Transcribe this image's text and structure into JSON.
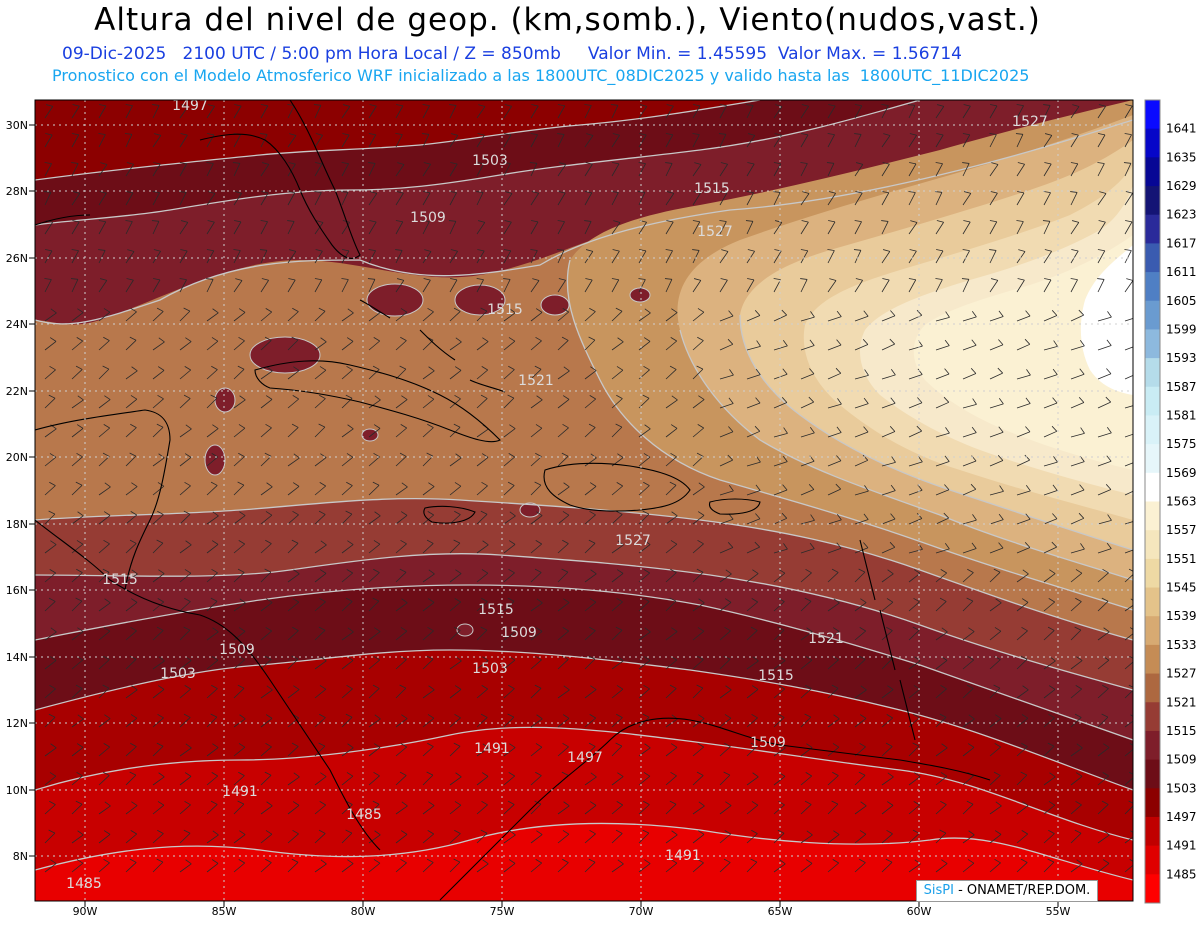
{
  "title": "Altura del nivel de geop. (km,somb.), Viento(nudos,vast.)",
  "subtitle_1": "09-Dic-2025   2100 UTC / 5:00 pm Hora Local / Z = 850mb     Valor Min. = 1.45595  Valor Max. = 1.56714",
  "subtitle_2": "Pronostico con el Modelo Atmosferico WRF inicializado a las 1800UTC_08DIC2025 y valido hasta las  1800UTC_11DIC2025",
  "credit": {
    "brand": "SisPI",
    "text": "- ONAMET/REP.DOM."
  },
  "map": {
    "lat_labels": [
      "30N",
      "28N",
      "26N",
      "24N",
      "22N",
      "20N",
      "18N",
      "16N",
      "14N",
      "12N",
      "10N",
      "8N"
    ],
    "lon_labels": [
      "90W",
      "85W",
      "80W",
      "75W",
      "70W",
      "65W",
      "60W",
      "55W"
    ],
    "contour_labels": [
      "1497",
      "1503",
      "1509",
      "1515",
      "1515",
      "1527",
      "1527",
      "1521",
      "1527",
      "1515",
      "1515",
      "1509",
      "1509",
      "1503",
      "1503",
      "1515",
      "1521",
      "1509",
      "1491",
      "1497",
      "1491",
      "1485",
      "1491",
      "1485"
    ]
  },
  "colorbar": {
    "labels": [
      "1641",
      "1635",
      "1629",
      "1623",
      "1617",
      "1611",
      "1605",
      "1599",
      "1593",
      "1587",
      "1581",
      "1575",
      "1569",
      "1563",
      "1557",
      "1551",
      "1545",
      "1539",
      "1533",
      "1527",
      "1521",
      "1515",
      "1509",
      "1503",
      "1497",
      "1491",
      "1485"
    ],
    "colors": [
      "#0a0aff",
      "#0606c8",
      "#070795",
      "#141475",
      "#2a2a9a",
      "#3a5bb0",
      "#4f7fc4",
      "#6a9bd0",
      "#8db9de",
      "#b5dcea",
      "#c9ecf4",
      "#d9f2f8",
      "#e6f6fa",
      "#ffffff",
      "#fbf1d3",
      "#f5e6bd",
      "#eed9a4",
      "#e4c38a",
      "#d7aa72",
      "#c58c55",
      "#ad6840",
      "#963c34",
      "#7e1e2a",
      "#6d0d17",
      "#8c0000",
      "#c00000",
      "#e00000",
      "#ff0000"
    ]
  },
  "colors": {
    "title": "#000000",
    "subtitle_1": "#1a3fe0",
    "subtitle_2": "#19a6f0"
  }
}
